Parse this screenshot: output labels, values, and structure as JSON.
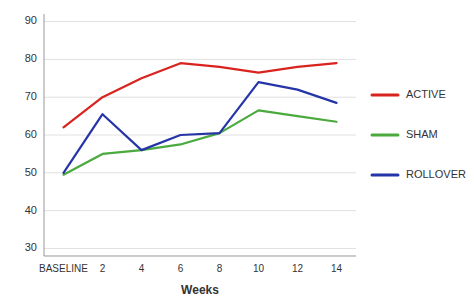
{
  "chart_data": {
    "type": "line",
    "categories": [
      "BASELINE",
      "2",
      "4",
      "6",
      "8",
      "10",
      "12",
      "14"
    ],
    "series": [
      {
        "name": "ACTIVE",
        "color": "#d9231e",
        "values": [
          62,
          70,
          75,
          79,
          78,
          76.5,
          78,
          79
        ]
      },
      {
        "name": "SHAM",
        "color": "#4aaa3e",
        "values": [
          49.5,
          55,
          56,
          57.5,
          60.5,
          66.5,
          65,
          63.5
        ]
      },
      {
        "name": "ROLLOVER",
        "color": "#2535a8",
        "values": [
          50,
          65.5,
          56,
          60,
          60.5,
          74,
          72,
          68.5
        ]
      }
    ],
    "xlabel": "Weeks",
    "ylim": [
      28,
      92
    ],
    "yticks": [
      30,
      40,
      50,
      60,
      70,
      80,
      90
    ],
    "grid": true,
    "legend": "right"
  }
}
